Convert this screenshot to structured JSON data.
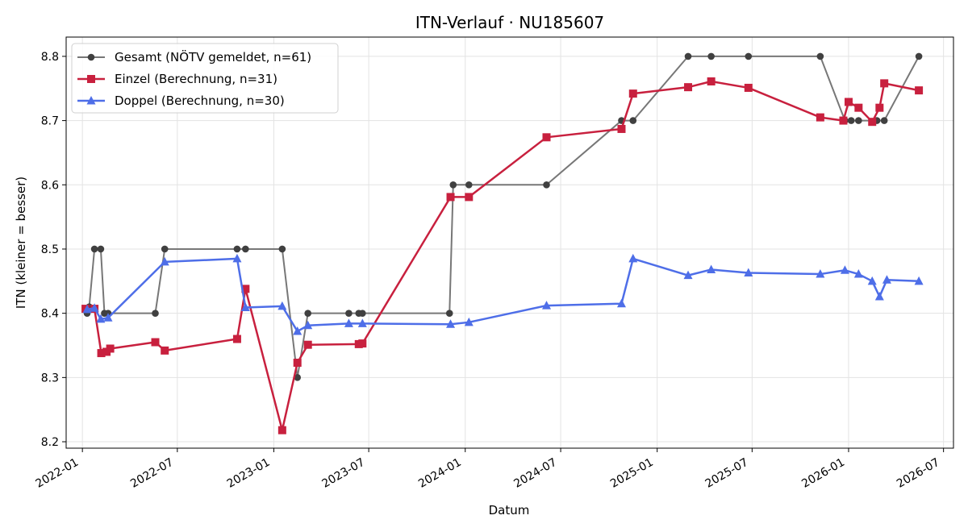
{
  "chart_data": {
    "type": "line",
    "title": "ITN-Verlauf · NU185607",
    "xlabel": "Datum",
    "ylabel": "ITN  (kleiner = besser)",
    "xlim": [
      "2021-12-01",
      "2026-07-20"
    ],
    "ylim": [
      8.19,
      8.83
    ],
    "x_ticks": [
      "2022-01",
      "2022-07",
      "2023-01",
      "2023-07",
      "2024-01",
      "2024-07",
      "2025-01",
      "2025-07",
      "2026-01",
      "2026-07"
    ],
    "y_ticks": [
      8.2,
      8.3,
      8.4,
      8.5,
      8.6,
      8.7,
      8.8
    ],
    "grid": true,
    "legend_position": "top-left",
    "series": [
      {
        "name": "Gesamt (NÖTV gemeldet, n=61)",
        "color": "#777777",
        "marker": "circle",
        "marker_color": "#404040",
        "points": [
          [
            "2022-01-10",
            8.4
          ],
          [
            "2022-01-14",
            8.41
          ],
          [
            "2022-01-24",
            8.5
          ],
          [
            "2022-02-05",
            8.5
          ],
          [
            "2022-02-12",
            8.4
          ],
          [
            "2022-02-19",
            8.4
          ],
          [
            "2022-05-20",
            8.4
          ],
          [
            "2022-06-07",
            8.5
          ],
          [
            "2022-10-23",
            8.5
          ],
          [
            "2022-11-08",
            8.5
          ],
          [
            "2023-01-17",
            8.5
          ],
          [
            "2023-02-15",
            8.3
          ],
          [
            "2023-03-07",
            8.4
          ],
          [
            "2023-05-24",
            8.4
          ],
          [
            "2023-06-12",
            8.4
          ],
          [
            "2023-06-19",
            8.4
          ],
          [
            "2023-12-02",
            8.4
          ],
          [
            "2023-12-09",
            8.6
          ],
          [
            "2024-01-08",
            8.6
          ],
          [
            "2024-06-04",
            8.6
          ],
          [
            "2024-10-25",
            8.7
          ],
          [
            "2024-11-16",
            8.7
          ],
          [
            "2025-03-01",
            8.8
          ],
          [
            "2025-04-14",
            8.8
          ],
          [
            "2025-06-24",
            8.8
          ],
          [
            "2025-11-08",
            8.8
          ],
          [
            "2025-12-25",
            8.7
          ],
          [
            "2026-01-06",
            8.7
          ],
          [
            "2026-01-20",
            8.7
          ],
          [
            "2026-02-24",
            8.7
          ],
          [
            "2026-03-10",
            8.7
          ],
          [
            "2026-05-15",
            8.8
          ]
        ]
      },
      {
        "name": "Einzel (Berechnung, n=31)",
        "color": "#c8203e",
        "marker": "square",
        "marker_color": "#c8203e",
        "points": [
          [
            "2022-01-07",
            8.407
          ],
          [
            "2022-01-24",
            8.407
          ],
          [
            "2022-02-06",
            8.338
          ],
          [
            "2022-02-16",
            8.34
          ],
          [
            "2022-02-23",
            8.345
          ],
          [
            "2022-05-20",
            8.355
          ],
          [
            "2022-06-07",
            8.342
          ],
          [
            "2022-10-23",
            8.36
          ],
          [
            "2022-11-08",
            8.438
          ],
          [
            "2023-01-17",
            8.218
          ],
          [
            "2023-02-15",
            8.323
          ],
          [
            "2023-03-07",
            8.351
          ],
          [
            "2023-06-12",
            8.352
          ],
          [
            "2023-06-19",
            8.353
          ],
          [
            "2023-12-04",
            8.581
          ],
          [
            "2024-01-08",
            8.581
          ],
          [
            "2024-06-04",
            8.674
          ],
          [
            "2024-10-25",
            8.687
          ],
          [
            "2024-11-16",
            8.742
          ],
          [
            "2025-03-01",
            8.752
          ],
          [
            "2025-04-14",
            8.761
          ],
          [
            "2025-06-24",
            8.751
          ],
          [
            "2025-11-08",
            8.705
          ],
          [
            "2025-12-22",
            8.7
          ],
          [
            "2026-01-01",
            8.729
          ],
          [
            "2026-01-20",
            8.72
          ],
          [
            "2026-02-15",
            8.698
          ],
          [
            "2026-03-01",
            8.72
          ],
          [
            "2026-03-10",
            8.758
          ],
          [
            "2026-05-15",
            8.747
          ]
        ]
      },
      {
        "name": "Doppel (Berechnung, n=30)",
        "color": "#4e6ee8",
        "marker": "triangle",
        "marker_color": "#4e6ee8",
        "points": [
          [
            "2022-01-10",
            8.406
          ],
          [
            "2022-01-24",
            8.408
          ],
          [
            "2022-02-05",
            8.391
          ],
          [
            "2022-02-19",
            8.393
          ],
          [
            "2022-06-07",
            8.48
          ],
          [
            "2022-10-23",
            8.485
          ],
          [
            "2022-11-08",
            8.409
          ],
          [
            "2023-01-17",
            8.411
          ],
          [
            "2023-02-15",
            8.372
          ],
          [
            "2023-03-07",
            8.381
          ],
          [
            "2023-05-24",
            8.384
          ],
          [
            "2023-06-19",
            8.384
          ],
          [
            "2023-12-04",
            8.383
          ],
          [
            "2024-01-08",
            8.386
          ],
          [
            "2024-06-04",
            8.412
          ],
          [
            "2024-10-25",
            8.415
          ],
          [
            "2024-11-16",
            8.485
          ],
          [
            "2025-03-01",
            8.459
          ],
          [
            "2025-04-14",
            8.468
          ],
          [
            "2025-06-24",
            8.463
          ],
          [
            "2025-11-08",
            8.461
          ],
          [
            "2025-12-25",
            8.467
          ],
          [
            "2026-01-20",
            8.461
          ],
          [
            "2026-02-15",
            8.45
          ],
          [
            "2026-03-01",
            8.426
          ],
          [
            "2026-03-15",
            8.452
          ],
          [
            "2026-05-15",
            8.45
          ]
        ]
      }
    ]
  }
}
